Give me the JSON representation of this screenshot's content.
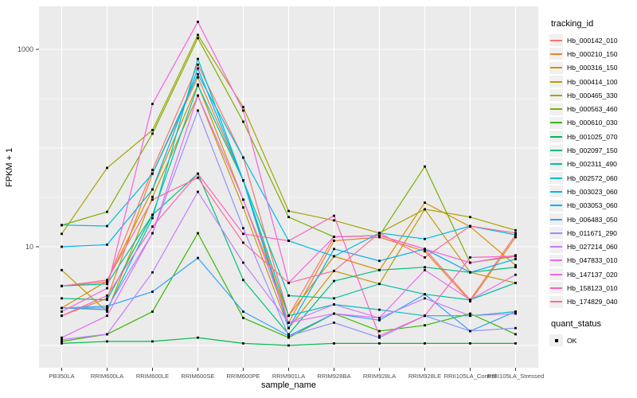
{
  "figure": {
    "background": "#FFFFFF",
    "panel_background": "#EBEBEB",
    "grid_color": "#FFFFFF",
    "tick_text_color": "#4D4D4D",
    "point_color": "#000000"
  },
  "legend": {
    "tracking_title": "tracking_id",
    "quant_title": "quant_status",
    "quant_items": [
      "OK"
    ]
  },
  "chart_data": {
    "type": "line",
    "title": "",
    "xlabel": "sample_name",
    "ylabel": "FPKM + 1",
    "y_scale": "log10",
    "grid": true,
    "legend_position": "right",
    "y_tick_labels": [
      {
        "label": "1000",
        "value": 1000
      },
      {
        "label": "10",
        "value": 10
      }
    ],
    "y_major_gridlines": [
      1,
      10,
      100,
      1000
    ],
    "y_minor_gridlines": [
      3.162,
      31.62,
      316.2
    ],
    "ylim_log10": [
      -0.25,
      3.44
    ],
    "categories": [
      "PB350LA",
      "RRIM600LA",
      "RRIM600LE",
      "RRIM600SE",
      "RRIM600PE",
      "RRIM901LA",
      "RRIM928BA",
      "RRIM928LA",
      "RRIM928LE",
      "RRII105LA_Control",
      "RRII105LA_Stressed"
    ],
    "series": [
      {
        "name": "Hb_000142_010",
        "color": "#F8766D",
        "values": [
          4.0,
          4.4,
          60,
          700,
          80,
          2.0,
          12.6,
          13.0,
          9.5,
          2.9,
          13.2
        ]
      },
      {
        "name": "Hb_000210_150",
        "color": "#EA8331",
        "values": [
          2.0,
          3.0,
          55,
          520,
          47,
          1.7,
          11.5,
          12.5,
          9.0,
          2.8,
          12.5
        ]
      },
      {
        "name": "Hb_000316_150",
        "color": "#D89000",
        "values": [
          2.4,
          4.5,
          38,
          440,
          30,
          2.0,
          8.0,
          5.8,
          28,
          16.0,
          6.5
        ]
      },
      {
        "name": "Hb_000414_100",
        "color": "#C09B00",
        "values": [
          5.8,
          2.2,
          32,
          340,
          25,
          1.5,
          5.7,
          4.2,
          24,
          5.5,
          4.3
        ]
      },
      {
        "name": "Hb_000465_330",
        "color": "#A3A500",
        "values": [
          13.5,
          63,
          152,
          1400,
          260,
          23,
          18.5,
          13.8,
          24,
          20,
          14.7
        ]
      },
      {
        "name": "Hb_000563_460",
        "color": "#7CAE00",
        "values": [
          16.5,
          22.6,
          140,
          1300,
          185,
          20,
          12.6,
          13.0,
          65,
          6.9,
          8.0
        ]
      },
      {
        "name": "Hb_000610_030",
        "color": "#39B600",
        "values": [
          1.1,
          1.3,
          2.2,
          13.7,
          1.9,
          1.2,
          2.1,
          1.4,
          1.6,
          2.1,
          1.3
        ]
      },
      {
        "name": "Hb_001025_070",
        "color": "#00BB4E",
        "values": [
          1.05,
          1.1,
          1.1,
          1.2,
          1.05,
          1.0,
          1.05,
          1.05,
          1.05,
          1.05,
          1.05
        ]
      },
      {
        "name": "Hb_002097_150",
        "color": "#00BF7D",
        "values": [
          3.0,
          2.9,
          21,
          55,
          4.6,
          1.3,
          4.5,
          5.8,
          6.2,
          5.5,
          6.2
        ]
      },
      {
        "name": "Hb_002311_490",
        "color": "#00C1A3",
        "values": [
          4.0,
          4.2,
          21,
          430,
          47,
          3.2,
          3.0,
          4.2,
          3.3,
          2.9,
          4.3
        ]
      },
      {
        "name": "Hb_002572_060",
        "color": "#00BFC4",
        "values": [
          2.4,
          2.3,
          19.5,
          800,
          47,
          2.0,
          2.6,
          2.3,
          2.0,
          2.0,
          2.2
        ]
      },
      {
        "name": "Hb_003023_060",
        "color": "#00BAE0",
        "values": [
          16.6,
          16.2,
          55,
          560,
          80,
          11.5,
          8.0,
          13.8,
          12.0,
          16.2,
          13.2
        ]
      },
      {
        "name": "Hb_003053_060",
        "color": "#00B0F6",
        "values": [
          10.0,
          10.5,
          38,
          640,
          47,
          1.5,
          9.5,
          7.2,
          9.5,
          5.5,
          7.5
        ]
      },
      {
        "name": "Hb_006483_050",
        "color": "#35A2FF",
        "values": [
          2.4,
          2.5,
          3.5,
          7.7,
          2.2,
          1.25,
          2.1,
          1.8,
          3.3,
          1.4,
          2.2
        ]
      },
      {
        "name": "Hb_011671_290",
        "color": "#9590FF",
        "values": [
          2.4,
          2.4,
          13.7,
          240,
          15.4,
          1.25,
          1.7,
          1.2,
          2.0,
          1.4,
          1.5
        ]
      },
      {
        "name": "Hb_027214_060",
        "color": "#C77CFF",
        "values": [
          1.15,
          1.3,
          5.5,
          36,
          6.9,
          1.7,
          2.6,
          1.9,
          3.0,
          2.0,
          2.1
        ]
      },
      {
        "name": "Hb_047833_010",
        "color": "#E76BF3",
        "values": [
          1.2,
          2.0,
          13.7,
          340,
          30,
          1.7,
          2.1,
          1.9,
          5.8,
          2.9,
          5.2
        ]
      },
      {
        "name": "Hb_147137_020",
        "color": "#FA62DB",
        "values": [
          2.2,
          3.8,
          280,
          1900,
          240,
          4.3,
          12.6,
          13.0,
          9.5,
          6.9,
          8.2
        ]
      },
      {
        "name": "Hb_158123_010",
        "color": "#FF62BC",
        "values": [
          2.0,
          3.2,
          16,
          55,
          13.5,
          11.5,
          20.6,
          1.25,
          2.0,
          7.8,
          8.0
        ]
      },
      {
        "name": "Hb_174829_040",
        "color": "#FF6A98",
        "values": [
          4.0,
          4.6,
          30,
          50,
          11.0,
          4.3,
          5.7,
          13.8,
          7.8,
          16.2,
          13.8
        ]
      }
    ]
  }
}
